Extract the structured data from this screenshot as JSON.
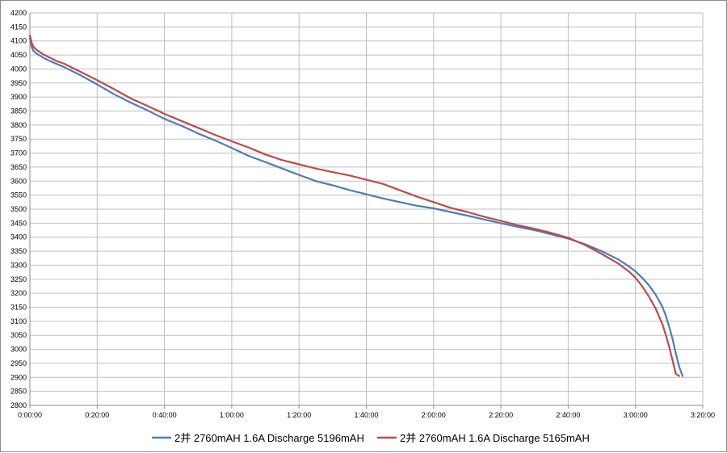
{
  "chart_data": {
    "type": "line",
    "title": "",
    "xlabel": "",
    "ylabel": "",
    "ylim": [
      2800,
      4200
    ],
    "y_ticks": [
      2800,
      2850,
      2900,
      2950,
      3000,
      3050,
      3100,
      3150,
      3200,
      3250,
      3300,
      3350,
      3400,
      3450,
      3500,
      3550,
      3600,
      3650,
      3700,
      3750,
      3800,
      3850,
      3900,
      3950,
      4000,
      4050,
      4100,
      4150,
      4200
    ],
    "xlim_minutes": [
      0,
      200
    ],
    "x_ticks": [
      {
        "minutes": 0,
        "label": "0:00:00"
      },
      {
        "minutes": 20,
        "label": "0:20:00"
      },
      {
        "minutes": 40,
        "label": "0:40:00"
      },
      {
        "minutes": 60,
        "label": "1:00:00"
      },
      {
        "minutes": 80,
        "label": "1:20:00"
      },
      {
        "minutes": 100,
        "label": "1:40:00"
      },
      {
        "minutes": 120,
        "label": "2:00:00"
      },
      {
        "minutes": 140,
        "label": "2:20:00"
      },
      {
        "minutes": 160,
        "label": "2:40:00"
      },
      {
        "minutes": 180,
        "label": "3:00:00"
      },
      {
        "minutes": 200,
        "label": "3:20:00"
      }
    ],
    "grid": true,
    "legend_position": "bottom",
    "series": [
      {
        "name": "2并  2760mAH 1.6A Discharge 5196mAH",
        "color": "#4a7ebb",
        "x": [
          0,
          0.5,
          1,
          2,
          4,
          6,
          8,
          10,
          15,
          20,
          25,
          30,
          35,
          40,
          45,
          50,
          55,
          60,
          65,
          70,
          75,
          80,
          85,
          90,
          95,
          100,
          105,
          110,
          115,
          120,
          125,
          130,
          135,
          140,
          145,
          150,
          155,
          160,
          165,
          170,
          175,
          178,
          180,
          182,
          184,
          186,
          188,
          189,
          190,
          191,
          192,
          193,
          194
        ],
        "y": [
          4110,
          4080,
          4065,
          4055,
          4040,
          4028,
          4018,
          4008,
          3978,
          3945,
          3910,
          3880,
          3852,
          3822,
          3798,
          3770,
          3745,
          3718,
          3690,
          3668,
          3645,
          3622,
          3600,
          3585,
          3568,
          3553,
          3538,
          3525,
          3512,
          3503,
          3490,
          3477,
          3463,
          3450,
          3437,
          3425,
          3410,
          3395,
          3375,
          3350,
          3320,
          3296,
          3278,
          3255,
          3228,
          3195,
          3152,
          3120,
          3082,
          3038,
          2985,
          2938,
          2905
        ]
      },
      {
        "name": "2并  2760mAH 1.6A Discharge 5165mAH",
        "color": "#be4b48",
        "x": [
          0,
          0.5,
          1,
          2,
          4,
          6,
          8,
          10,
          15,
          20,
          25,
          30,
          35,
          40,
          45,
          50,
          55,
          60,
          65,
          70,
          75,
          80,
          85,
          90,
          95,
          100,
          105,
          110,
          115,
          120,
          125,
          130,
          135,
          140,
          145,
          150,
          155,
          160,
          165,
          170,
          175,
          178,
          180,
          182,
          184,
          186,
          188,
          189,
          190,
          191,
          192,
          193
        ],
        "y": [
          4120,
          4095,
          4080,
          4068,
          4052,
          4040,
          4028,
          4020,
          3990,
          3960,
          3928,
          3895,
          3868,
          3840,
          3815,
          3790,
          3765,
          3742,
          3720,
          3695,
          3675,
          3660,
          3645,
          3632,
          3620,
          3605,
          3590,
          3567,
          3545,
          3525,
          3505,
          3490,
          3473,
          3458,
          3443,
          3430,
          3415,
          3398,
          3372,
          3340,
          3305,
          3278,
          3255,
          3225,
          3188,
          3145,
          3090,
          3052,
          3010,
          2962,
          2912,
          2905
        ]
      }
    ]
  }
}
